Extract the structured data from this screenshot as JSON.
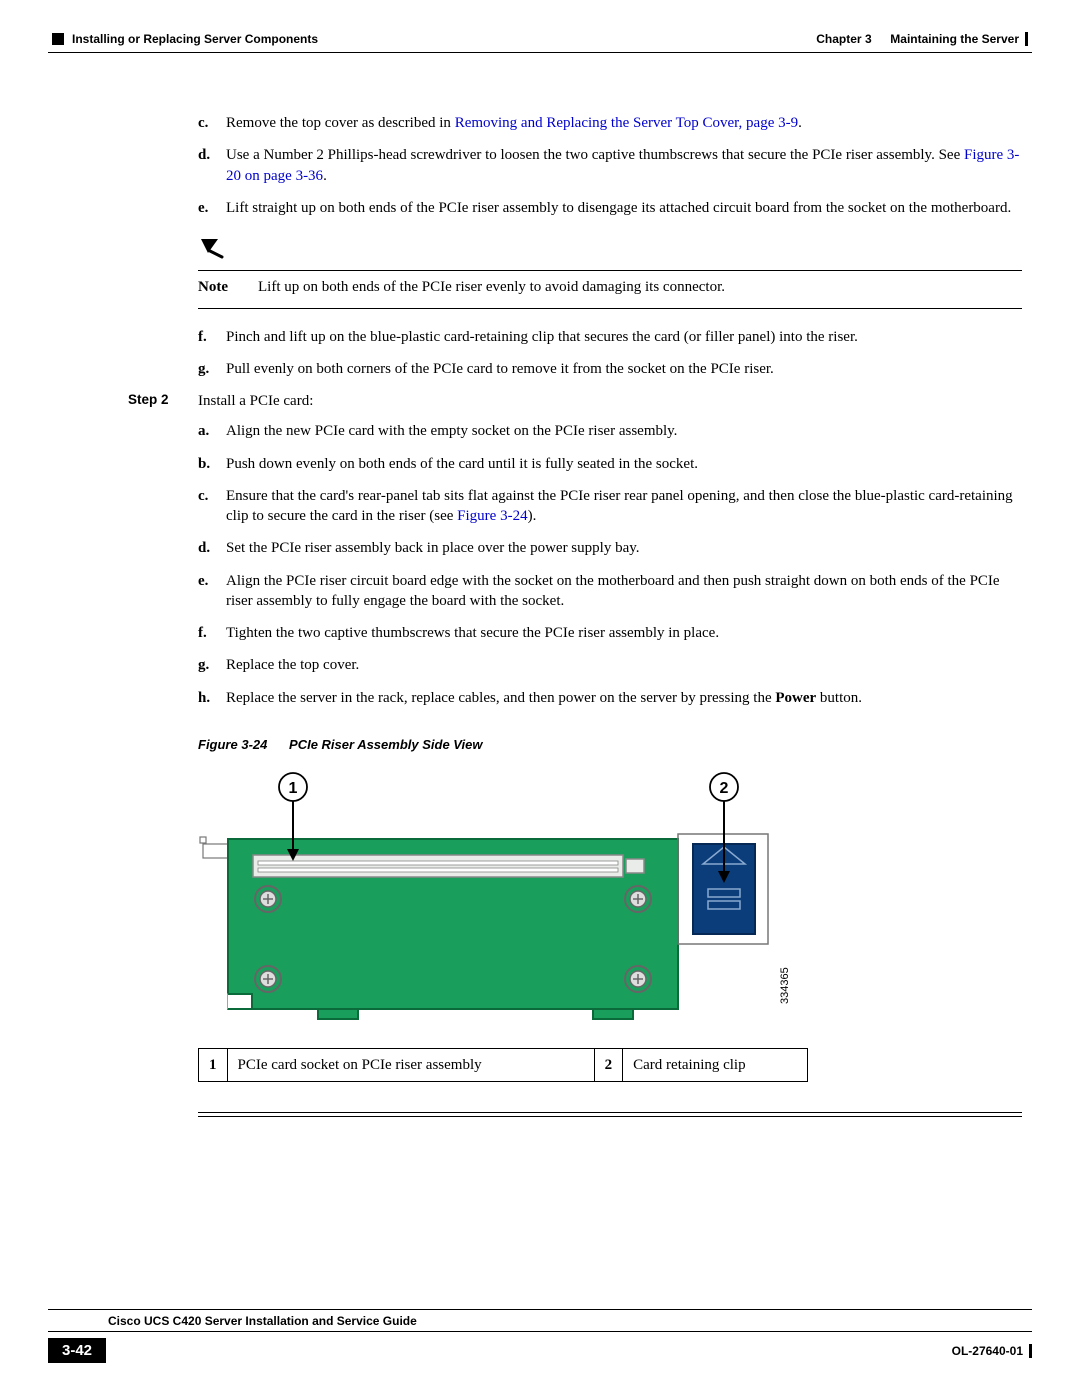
{
  "header": {
    "chapter": "Chapter 3",
    "chapter_title": "Maintaining the Server",
    "section": "Installing or Replacing Server Components"
  },
  "steps1": {
    "c": {
      "pre": "Remove the top cover as described in ",
      "link": "Removing and Replacing the Server Top Cover, page 3-9",
      "post": "."
    },
    "d": {
      "pre": "Use a Number 2 Phillips-head screwdriver to loosen the two captive thumbscrews that secure the PCIe riser assembly. See ",
      "link": "Figure 3-20 on page 3-36",
      "post": "."
    },
    "e": "Lift straight up on both ends of the PCIe riser assembly to disengage its attached circuit board from the socket on the motherboard."
  },
  "note": {
    "label": "Note",
    "text": "Lift up on both ends of the PCIe riser evenly to avoid damaging its connector."
  },
  "steps1b": {
    "f": "Pinch and lift up on the blue-plastic card-retaining clip that secures the card (or filler panel) into the riser.",
    "g": "Pull evenly on both corners of the PCIe card to remove it from the socket on the PCIe riser."
  },
  "step2": {
    "label": "Step 2",
    "intro": "Install a PCIe card:",
    "a": "Align the new PCIe card with the empty socket on the PCIe riser assembly.",
    "b": "Push down evenly on both ends of the card until it is fully seated in the socket.",
    "c": {
      "pre": "Ensure that the card's rear-panel tab sits flat against the PCIe riser rear panel opening, and then close the blue-plastic card-retaining clip to secure the card in the riser (see ",
      "link": "Figure 3-24",
      "post": ")."
    },
    "d": "Set the PCIe riser assembly back in place over the power supply bay.",
    "e": "Align the PCIe riser circuit board edge with the socket on the motherboard and then push straight down on both ends of the PCIe riser assembly to fully engage the board with the socket.",
    "f": "Tighten the two captive thumbscrews that secure the PCIe riser assembly in place.",
    "g": "Replace the top cover.",
    "h": {
      "pre": "Replace the server in the rack, replace cables, and then power on the server by pressing the ",
      "bold": "Power",
      "post": " button."
    }
  },
  "figure": {
    "caption_num": "Figure 3-24",
    "caption_title": "PCIe Riser Assembly Side View",
    "callout1": "1",
    "callout2": "2",
    "art_id": "334365",
    "colors": {
      "board_fill": "#1a9e5c",
      "board_stroke": "#0a6a3a",
      "slot_fill": "#e9ece9",
      "slot_stroke": "#888888",
      "clip_fill": "#0a3d7a",
      "clip_stroke": "#052954",
      "screw_outer": "#666666",
      "screw_inner": "#dddddd",
      "bracket_stroke": "#777777",
      "arrow": "#000000",
      "circle_stroke": "#000000",
      "circle_fill": "#ffffff"
    }
  },
  "legend": {
    "r1n": "1",
    "r1t": "PCIe card socket on PCIe riser assembly",
    "r2n": "2",
    "r2t": "Card retaining clip"
  },
  "footer": {
    "guide": "Cisco UCS C420 Server Installation and Service Guide",
    "page": "3-42",
    "doc_id": "OL-27640-01"
  }
}
